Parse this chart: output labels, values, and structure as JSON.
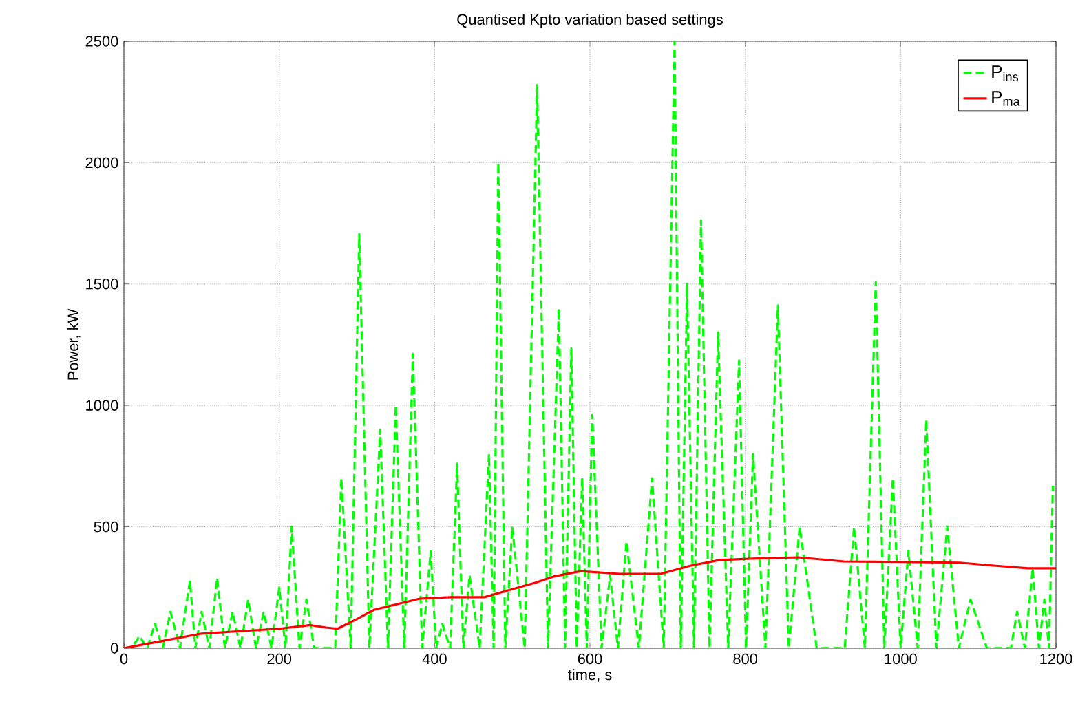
{
  "chart_data": {
    "type": "line",
    "title": "Quantised Kpto variation based settings",
    "xlabel": "time, s",
    "ylabel": "Power, kW",
    "xlim": [
      0,
      1200
    ],
    "ylim": [
      0,
      2500
    ],
    "xticks": [
      0,
      200,
      400,
      600,
      800,
      1000,
      1200
    ],
    "yticks": [
      0,
      500,
      1000,
      1500,
      2000,
      2500
    ],
    "grid": true,
    "legend": "top right",
    "series": [
      {
        "name": "P$_{ins}$",
        "color": "#00ff00",
        "line_style": "dashed",
        "x": [
          0,
          10,
          20,
          30,
          40,
          50,
          60,
          72,
          85,
          92,
          100,
          110,
          120,
          130,
          140,
          150,
          160,
          170,
          180,
          190,
          200,
          208,
          216,
          226,
          235,
          245,
          265,
          272,
          280,
          292,
          303,
          316,
          330,
          340,
          350,
          361,
          372,
          384,
          395,
          402,
          410,
          420,
          429,
          437,
          445,
          458,
          470,
          476,
          482,
          491,
          500,
          516,
          532,
          546,
          560,
          568,
          576,
          583,
          590,
          596,
          603,
          615,
          626,
          636,
          647,
          663,
          680,
          695,
          709,
          717,
          725,
          734,
          743,
          754,
          765,
          778,
          792,
          801,
          810,
          826,
          842,
          856,
          870,
          892,
          916,
          928,
          940,
          954,
          968,
          979,
          990,
          1000,
          1010,
          1022,
          1033,
          1046,
          1060,
          1075,
          1090,
          1111,
          1134,
          1142,
          1150,
          1160,
          1170,
          1178,
          1185,
          1191,
          1196
        ],
        "values": [
          0,
          0,
          50,
          0,
          100,
          0,
          150,
          0,
          278,
          0,
          150,
          0,
          290,
          0,
          150,
          0,
          200,
          0,
          150,
          0,
          250,
          0,
          500,
          0,
          200,
          0,
          0,
          0,
          700,
          0,
          1706,
          0,
          900,
          0,
          1000,
          0,
          1213,
          0,
          400,
          0,
          100,
          0,
          760,
          0,
          300,
          0,
          800,
          0,
          2000,
          0,
          500,
          0,
          2320,
          0,
          1400,
          0,
          1235,
          0,
          700,
          0,
          960,
          0,
          300,
          0,
          440,
          0,
          700,
          0,
          2500,
          0,
          1500,
          0,
          1763,
          0,
          1300,
          0,
          1185,
          0,
          800,
          0,
          1412,
          0,
          500,
          0,
          0,
          0,
          500,
          0,
          1508,
          0,
          700,
          0,
          400,
          0,
          941,
          0,
          500,
          0,
          200,
          0,
          0,
          0,
          150,
          0,
          329,
          0,
          200,
          0,
          669
        ]
      },
      {
        "name": "P$_{ma}$",
        "color": "#ff0000",
        "line_style": "solid",
        "x": [
          0,
          50,
          100,
          150,
          200,
          240,
          260,
          275,
          300,
          322,
          350,
          381,
          420,
          464,
          500,
          530,
          553,
          588,
          638,
          691,
          730,
          767,
          820,
          868,
          927,
          1000,
          1076,
          1120,
          1164,
          1200
        ],
        "values": [
          0,
          30,
          60,
          70,
          80,
          95,
          85,
          80,
          120,
          158,
          180,
          204,
          210,
          210,
          243,
          270,
          295,
          317,
          306,
          306,
          340,
          363,
          370,
          374,
          357,
          355,
          352,
          340,
          329,
          329
        ]
      }
    ]
  }
}
